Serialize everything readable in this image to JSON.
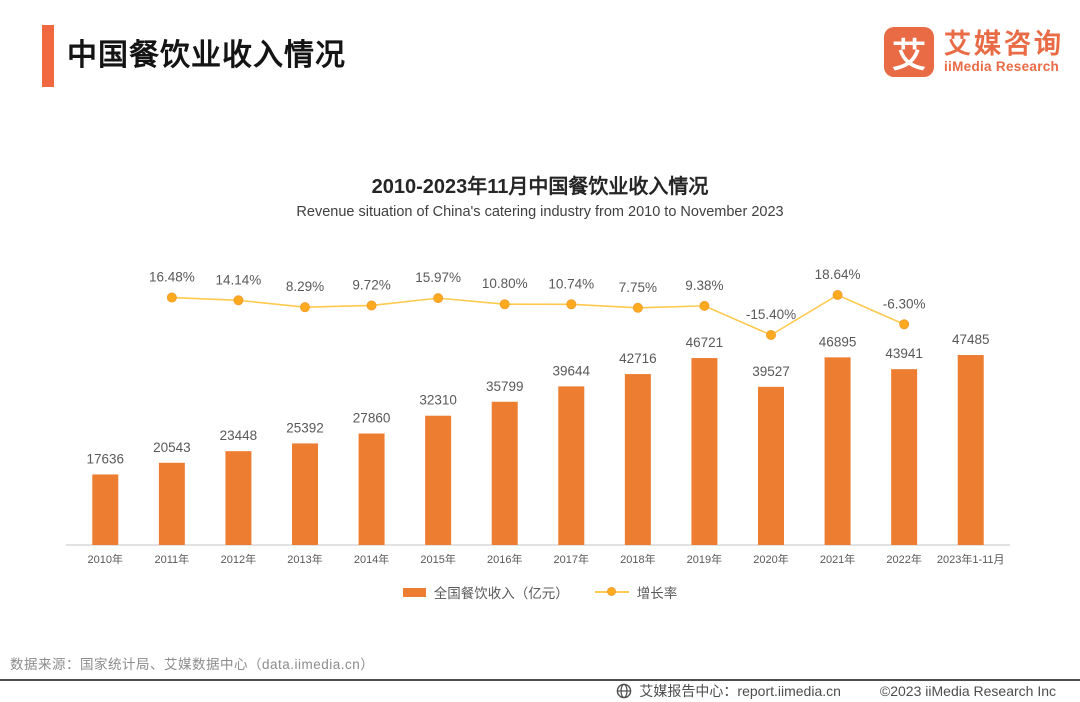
{
  "header": {
    "title": "中国餐饮业收入情况"
  },
  "logo": {
    "mark": "艾",
    "name_cn": "艾媒咨询",
    "name_en": "iiMedia Research",
    "color": "#E96B45"
  },
  "chart_data": {
    "type": "bar",
    "title": "2010-2023年11月中国餐饮业收入情况",
    "subtitle": "Revenue situation of China's catering industry from 2010 to November 2023",
    "categories": [
      "2010年",
      "2011年",
      "2012年",
      "2013年",
      "2014年",
      "2015年",
      "2016年",
      "2017年",
      "2018年",
      "2019年",
      "2020年",
      "2021年",
      "2022年",
      "2023年1-11月"
    ],
    "series": [
      {
        "name": "全国餐饮收入（亿元）",
        "type": "bar",
        "color": "#ED7D31",
        "values": [
          17636,
          20543,
          23448,
          25392,
          27860,
          32310,
          35799,
          39644,
          42716,
          46721,
          39527,
          46895,
          43941,
          47485
        ]
      },
      {
        "name": "增长率",
        "type": "line",
        "color": "#FFC94D",
        "marker_color": "#FFAA1E",
        "marker_stroke": "#F0A030",
        "values": [
          null,
          16.48,
          14.14,
          8.29,
          9.72,
          15.97,
          10.8,
          10.74,
          7.75,
          9.38,
          -15.4,
          18.64,
          -6.3,
          null
        ]
      }
    ],
    "ylim": [
      0,
      50000
    ],
    "grid": false,
    "legend_position": "bottom",
    "label_color": "#595959",
    "axis_line_color": "#D9D9D9"
  },
  "footer": {
    "source": "数据来源：国家统计局、艾媒数据中心（data.iimedia.cn）",
    "report_center": "艾媒报告中心：report.iimedia.cn",
    "copyright": "©2023  iiMedia Research Inc"
  }
}
